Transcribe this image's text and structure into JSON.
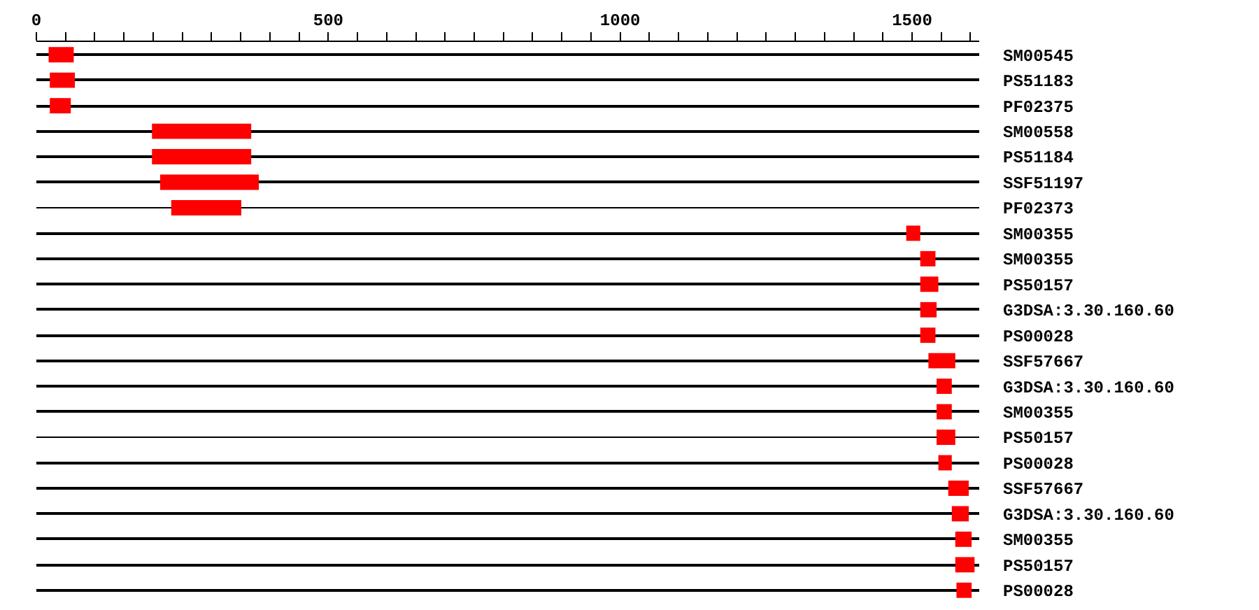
{
  "chart_data": {
    "type": "bar",
    "orientation": "horizontal",
    "categories": [
      "SM00545",
      "PS51183",
      "PF02375",
      "SM00558",
      "PS51184",
      "SSF51197",
      "PF02373",
      "SM00355",
      "SM00355",
      "PS50157",
      "G3DSA:3.30.160.60",
      "PS00028",
      "SSF57667",
      "G3DSA:3.30.160.60",
      "SM00355",
      "PS50157",
      "PS00028",
      "SSF57667",
      "G3DSA:3.30.160.60",
      "SM00355",
      "PS50157",
      "PS00028"
    ],
    "series": [
      {
        "color": "#000000",
        "base": [
          0,
          0,
          0,
          0,
          0,
          0,
          0,
          0,
          0,
          0,
          0,
          0,
          0,
          0,
          0,
          0,
          0,
          0,
          0,
          0,
          0,
          0
        ],
        "values": [
          1615,
          1615,
          1615,
          1615,
          1615,
          1615,
          1615,
          1615,
          1615,
          1615,
          1615,
          1615,
          1615,
          1615,
          1615,
          1615,
          1615,
          1615,
          1615,
          1615,
          1615,
          1615
        ]
      },
      {
        "color": "#ff0000",
        "base": [
          21,
          23,
          23,
          198,
          198,
          212,
          231,
          1490,
          1514,
          1514,
          1514,
          1514,
          1528,
          1542,
          1542,
          1542,
          1545,
          1562,
          1568,
          1574,
          1574,
          1576
        ],
        "values": [
          43,
          43,
          36,
          170,
          170,
          169,
          120,
          24,
          26,
          31,
          28,
          26,
          46,
          26,
          26,
          32,
          23,
          35,
          29,
          28,
          33,
          26
        ]
      }
    ],
    "xlim": [
      0,
      1615
    ],
    "xticks": [
      0,
      {
        "value": 50,
        "label": null
      },
      {
        "value": 100,
        "label": null
      },
      {
        "value": 150,
        "label": null
      },
      {
        "value": 200,
        "label": null
      },
      {
        "value": 250,
        "label": null
      },
      {
        "value": 300,
        "label": null
      },
      {
        "value": 350,
        "label": null
      },
      {
        "value": 400,
        "label": null
      },
      {
        "value": 450,
        "label": null
      },
      500,
      {
        "value": 550,
        "label": null
      },
      {
        "value": 600,
        "label": null
      },
      {
        "value": 650,
        "label": null
      },
      {
        "value": 700,
        "label": null
      },
      {
        "value": 750,
        "label": null
      },
      {
        "value": 800,
        "label": null
      },
      {
        "value": 850,
        "label": null
      },
      {
        "value": 900,
        "label": null
      },
      {
        "value": 950,
        "label": null
      },
      1000,
      {
        "value": 1050,
        "label": null
      },
      {
        "value": 1100,
        "label": null
      },
      {
        "value": 1150,
        "label": null
      },
      {
        "value": 1200,
        "label": null
      },
      {
        "value": 1250,
        "label": null
      },
      {
        "value": 1300,
        "label": null
      },
      {
        "value": 1350,
        "label": null
      },
      {
        "value": 1400,
        "label": null
      },
      {
        "value": 1450,
        "label": null
      },
      1500,
      {
        "value": 1550,
        "label": null
      },
      {
        "value": 1600,
        "label": null
      }
    ],
    "line_style": "solid"
  }
}
